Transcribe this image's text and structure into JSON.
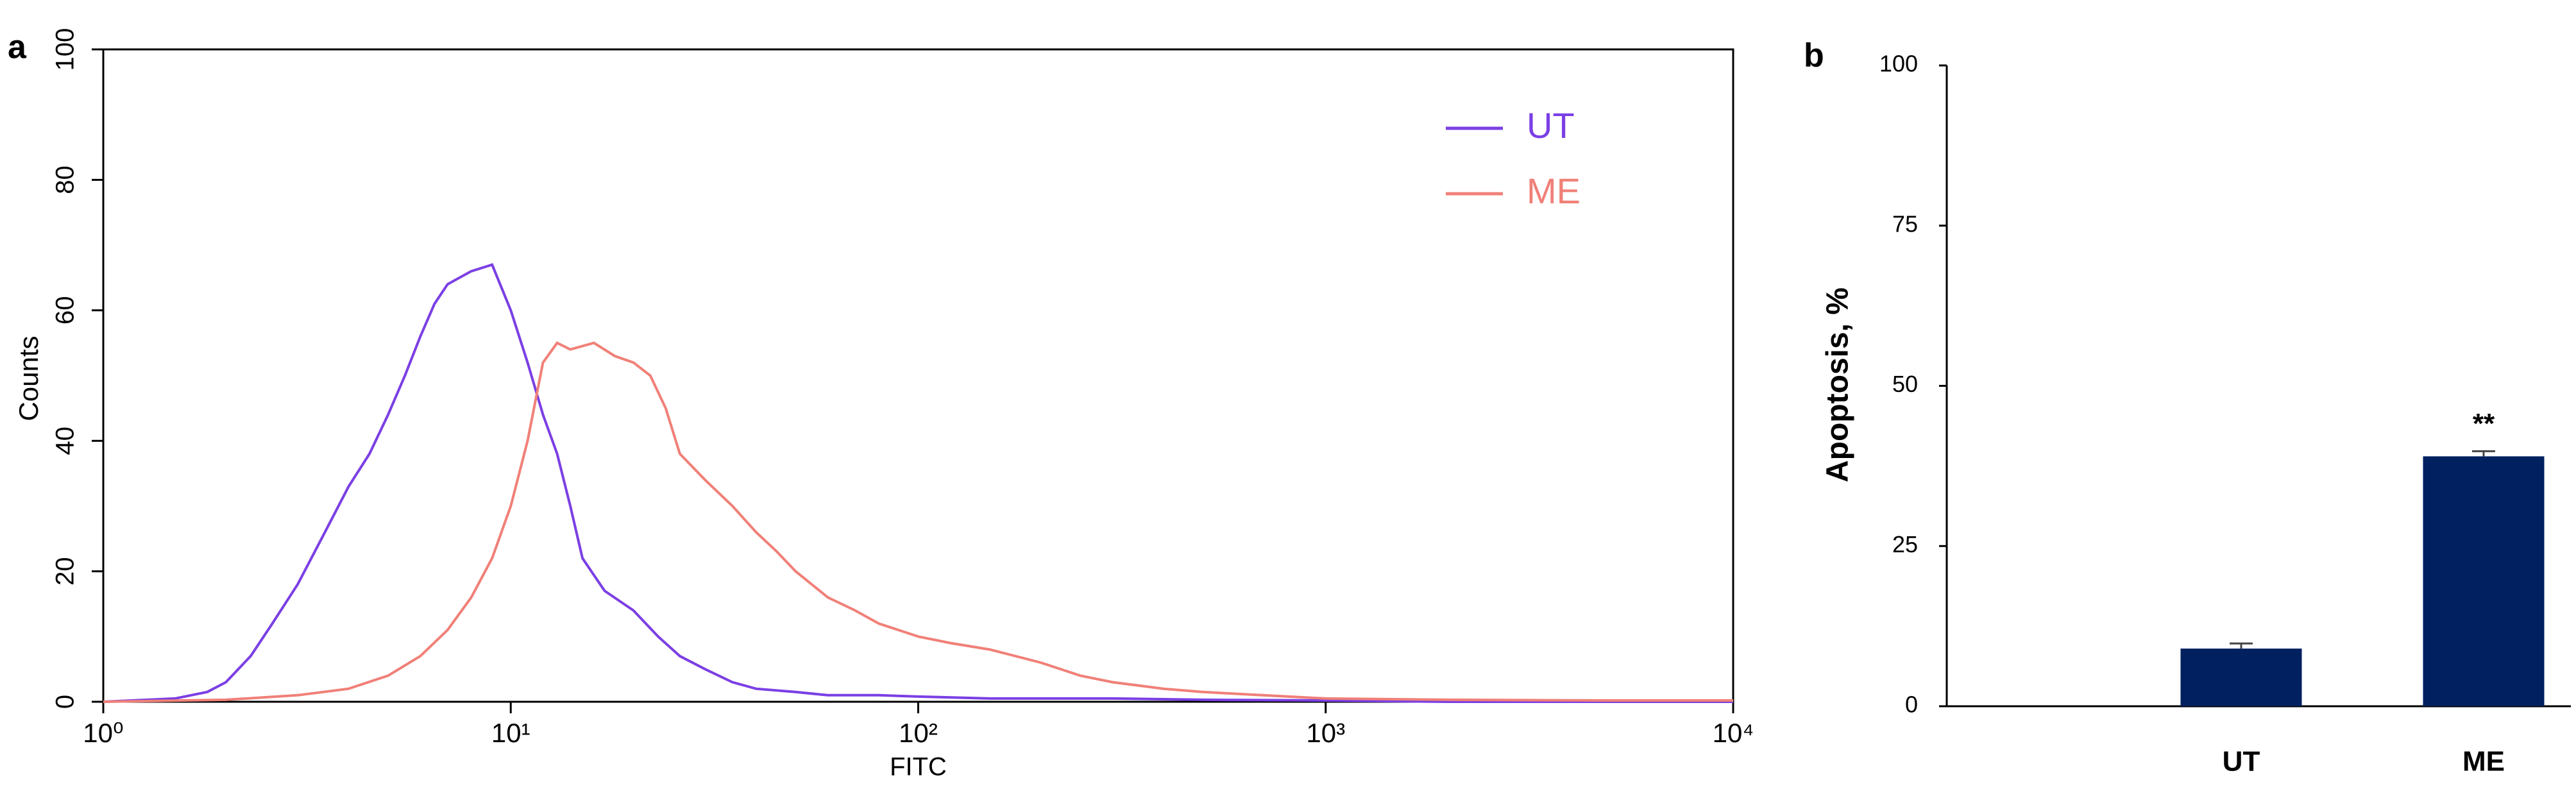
{
  "chart_data": [
    {
      "type": "line",
      "panel_label": "a",
      "xlabel": "FITC",
      "ylabel": "Counts",
      "xscale": "log",
      "xlim": [
        1,
        10000
      ],
      "xticks": [
        {
          "value": 1,
          "label": "10⁰"
        },
        {
          "value": 10,
          "label": "10¹"
        },
        {
          "value": 100,
          "label": "10²"
        },
        {
          "value": 1000,
          "label": "10³"
        },
        {
          "value": 10000,
          "label": "10⁴"
        }
      ],
      "ylim": [
        0,
        100
      ],
      "yticks": [
        0,
        20,
        40,
        60,
        80,
        100
      ],
      "legend": "upper right",
      "series": [
        {
          "name": "UT",
          "color": "#7b3fe4",
          "x": [
            1,
            1.5,
            1.8,
            2,
            2.3,
            2.6,
            3,
            3.5,
            4,
            4.5,
            5,
            5.5,
            6,
            6.5,
            7,
            8,
            9,
            10,
            11,
            12,
            13,
            14,
            15,
            17,
            20,
            23,
            26,
            30,
            35,
            40,
            50,
            60,
            80,
            100,
            150,
            200,
            300,
            500,
            1000,
            2000,
            10000
          ],
          "values": [
            0,
            0.5,
            1.5,
            3,
            7,
            12,
            18,
            26,
            33,
            38,
            44,
            50,
            56,
            61,
            64,
            66,
            67,
            60,
            52,
            44,
            38,
            30,
            22,
            17,
            14,
            10,
            7,
            5,
            3,
            2,
            1.5,
            1,
            1,
            0.8,
            0.5,
            0.5,
            0.5,
            0.3,
            0.2,
            0,
            0
          ]
        },
        {
          "name": "ME",
          "color": "#f08078",
          "x": [
            1,
            2,
            3,
            4,
            5,
            6,
            7,
            8,
            9,
            10,
            11,
            12,
            13,
            14,
            16,
            18,
            20,
            22,
            24,
            26,
            30,
            35,
            40,
            45,
            50,
            60,
            70,
            80,
            100,
            120,
            150,
            200,
            250,
            300,
            400,
            500,
            700,
            1000,
            2000,
            5000,
            10000
          ],
          "values": [
            0,
            0.3,
            1,
            2,
            4,
            7,
            11,
            16,
            22,
            30,
            40,
            52,
            55,
            54,
            55,
            53,
            52,
            50,
            45,
            38,
            34,
            30,
            26,
            23,
            20,
            16,
            14,
            12,
            10,
            9,
            8,
            6,
            4,
            3,
            2,
            1.5,
            1,
            0.5,
            0.3,
            0.2,
            0.2
          ]
        }
      ]
    },
    {
      "type": "bar",
      "panel_label": "b",
      "ylabel": "Apoptosis, %",
      "categories": [
        "UT",
        "ME"
      ],
      "values": [
        9,
        39
      ],
      "errors": [
        0.8,
        0.8
      ],
      "color": "#002060",
      "ylim": [
        0,
        100
      ],
      "yticks": [
        0,
        25,
        50,
        75,
        100
      ],
      "annotations": [
        {
          "text": "**",
          "x": "ME"
        }
      ]
    }
  ]
}
